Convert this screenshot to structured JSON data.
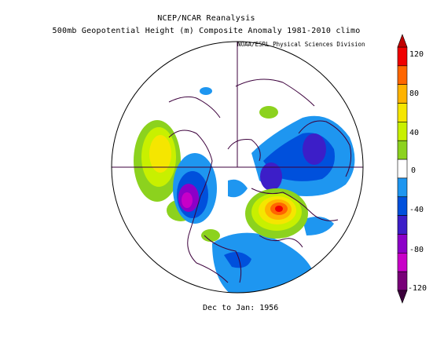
{
  "title_line1": "NCEP/NCAR Reanalysis",
  "title_line2": "500mb Geopotential Height (m) Composite Anomaly 1981-2010 climo",
  "credit": "NOAA/ESRL Physical Sciences Division",
  "footer": "Dec to Jan: 1956",
  "colorbar": {
    "ticks": [
      "120",
      "80",
      "40",
      "0",
      "-40",
      "-80",
      "-120"
    ],
    "colors": [
      "#f00000",
      "#ff6600",
      "#ffb300",
      "#f5e600",
      "#c8f000",
      "#8cd21e",
      "#ffffff",
      "#1e96f0",
      "#0050dc",
      "#3c1ec8",
      "#8c00c8",
      "#c800c8",
      "#780078"
    ]
  }
}
